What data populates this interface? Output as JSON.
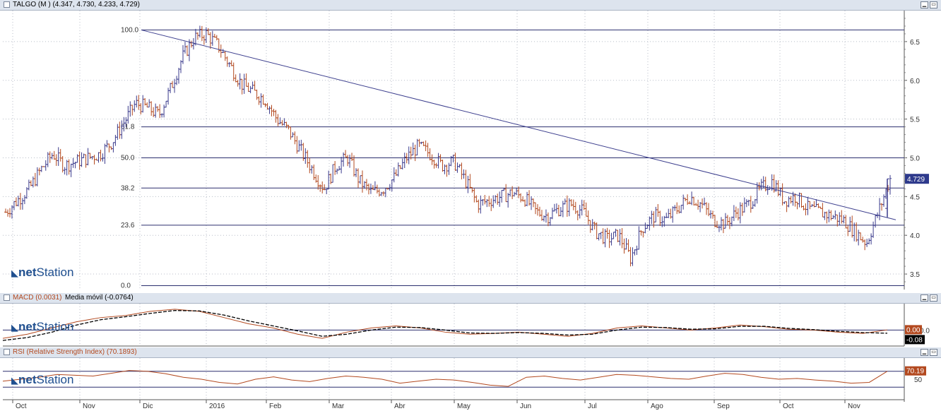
{
  "main_panel": {
    "title": "TALGO (M ) (4.347, 4.730, 4.233, 4.729)",
    "last_price_label": "4.729",
    "logo_text_bold": "net",
    "logo_text": "Station",
    "colors": {
      "up": "#3a3a8c",
      "down": "#b3491f",
      "grid": "#b8bec8",
      "trendline": "#3d3f8e",
      "badge": "#2e3a8c"
    }
  },
  "macd_panel": {
    "title_macd": "MACD (0.0031)",
    "title_ma": "Media móvil (-0.0764)",
    "badge_macd": "0.00",
    "badge_ma": "-0.08",
    "tick_label": "0.0"
  },
  "rsi_panel": {
    "title": "RSI (Relative Strength Index) (70.1893)",
    "badge": "70.19",
    "tick_label": "50"
  },
  "chart_data": [
    {
      "type": "ohlc",
      "title": "TALGO (M )",
      "last": {
        "open": 4.347,
        "high": 4.73,
        "low": 4.233,
        "close": 4.729
      },
      "ylim": [
        3.3,
        6.9
      ],
      "y_ticks": [
        3.5,
        4.0,
        4.5,
        5.0,
        5.5,
        6.0,
        6.5
      ],
      "x_labels": [
        "Oct",
        "Nov",
        "Dic",
        "2016",
        "Feb",
        "Mar",
        "Abr",
        "May",
        "Jun",
        "Jul",
        "Ago",
        "Sep",
        "Oct",
        "Nov"
      ],
      "fibonacci_levels": [
        {
          "label": "100.0",
          "price": 6.65
        },
        {
          "label": "61.8",
          "price": 5.4
        },
        {
          "label": "50.0",
          "price": 5.0
        },
        {
          "label": "38.2",
          "price": 4.61
        },
        {
          "label": "23.6",
          "price": 4.13
        },
        {
          "label": "0.0",
          "price": 3.35
        }
      ],
      "trendline": {
        "start_price": 6.65,
        "end_price": 4.2
      },
      "close_path": [
        4.3,
        4.45,
        4.6,
        4.85,
        5.05,
        4.9,
        4.95,
        5.0,
        5.05,
        5.2,
        5.45,
        5.7,
        5.65,
        5.55,
        5.9,
        6.3,
        6.55,
        6.6,
        6.45,
        6.2,
        5.95,
        5.85,
        5.75,
        5.5,
        5.35,
        5.1,
        4.85,
        4.6,
        4.9,
        5.0,
        4.7,
        4.55,
        4.6,
        4.75,
        5.0,
        5.15,
        5.05,
        4.9,
        4.95,
        4.7,
        4.4,
        4.45,
        4.5,
        4.55,
        4.48,
        4.3,
        4.25,
        4.35,
        4.4,
        4.3,
        4.05,
        3.95,
        4.0,
        3.7,
        4.1,
        4.25,
        4.2,
        4.35,
        4.5,
        4.4,
        4.2,
        4.15,
        4.3,
        4.4,
        4.6,
        4.7,
        4.45,
        4.5,
        4.35,
        4.3,
        4.25,
        4.2,
        4.05,
        3.9,
        4.3,
        4.729
      ]
    },
    {
      "type": "line",
      "title": "MACD",
      "series": [
        {
          "name": "MACD",
          "last": 0.0031,
          "values": [
            -0.2,
            -0.1,
            0.05,
            0.2,
            0.3,
            0.35,
            0.45,
            0.5,
            0.45,
            0.3,
            0.15,
            0.05,
            -0.1,
            -0.2,
            -0.05,
            0.05,
            0.1,
            0.05,
            -0.05,
            -0.1,
            -0.08,
            -0.05,
            -0.1,
            -0.15,
            -0.08,
            0.05,
            0.1,
            0.05,
            0.0,
            0.05,
            0.12,
            0.08,
            0.02,
            0.0,
            -0.05,
            -0.08,
            0.0031
          ]
        },
        {
          "name": "Media móvil",
          "last": -0.0764,
          "values": [
            -0.25,
            -0.18,
            -0.05,
            0.12,
            0.25,
            0.32,
            0.4,
            0.47,
            0.46,
            0.36,
            0.22,
            0.1,
            -0.02,
            -0.15,
            -0.1,
            0.0,
            0.07,
            0.06,
            0.0,
            -0.07,
            -0.08,
            -0.06,
            -0.08,
            -0.12,
            -0.1,
            0.0,
            0.07,
            0.06,
            0.02,
            0.03,
            0.09,
            0.09,
            0.04,
            0.01,
            -0.03,
            -0.06,
            -0.0764
          ]
        }
      ]
    },
    {
      "type": "line",
      "title": "RSI (Relative Strength Index)",
      "ylim": [
        0,
        100
      ],
      "levels": [
        30,
        70
      ],
      "series": [
        {
          "name": "RSI",
          "last": 70.1893,
          "values": [
            45,
            50,
            55,
            62,
            60,
            58,
            65,
            72,
            70,
            64,
            55,
            50,
            42,
            38,
            50,
            56,
            48,
            44,
            52,
            58,
            55,
            50,
            40,
            45,
            50,
            48,
            42,
            35,
            32,
            55,
            58,
            52,
            48,
            55,
            62,
            60,
            56,
            52,
            50,
            58,
            65,
            62,
            55,
            50,
            52,
            48,
            45,
            40,
            42,
            70.1893
          ]
        }
      ]
    }
  ]
}
